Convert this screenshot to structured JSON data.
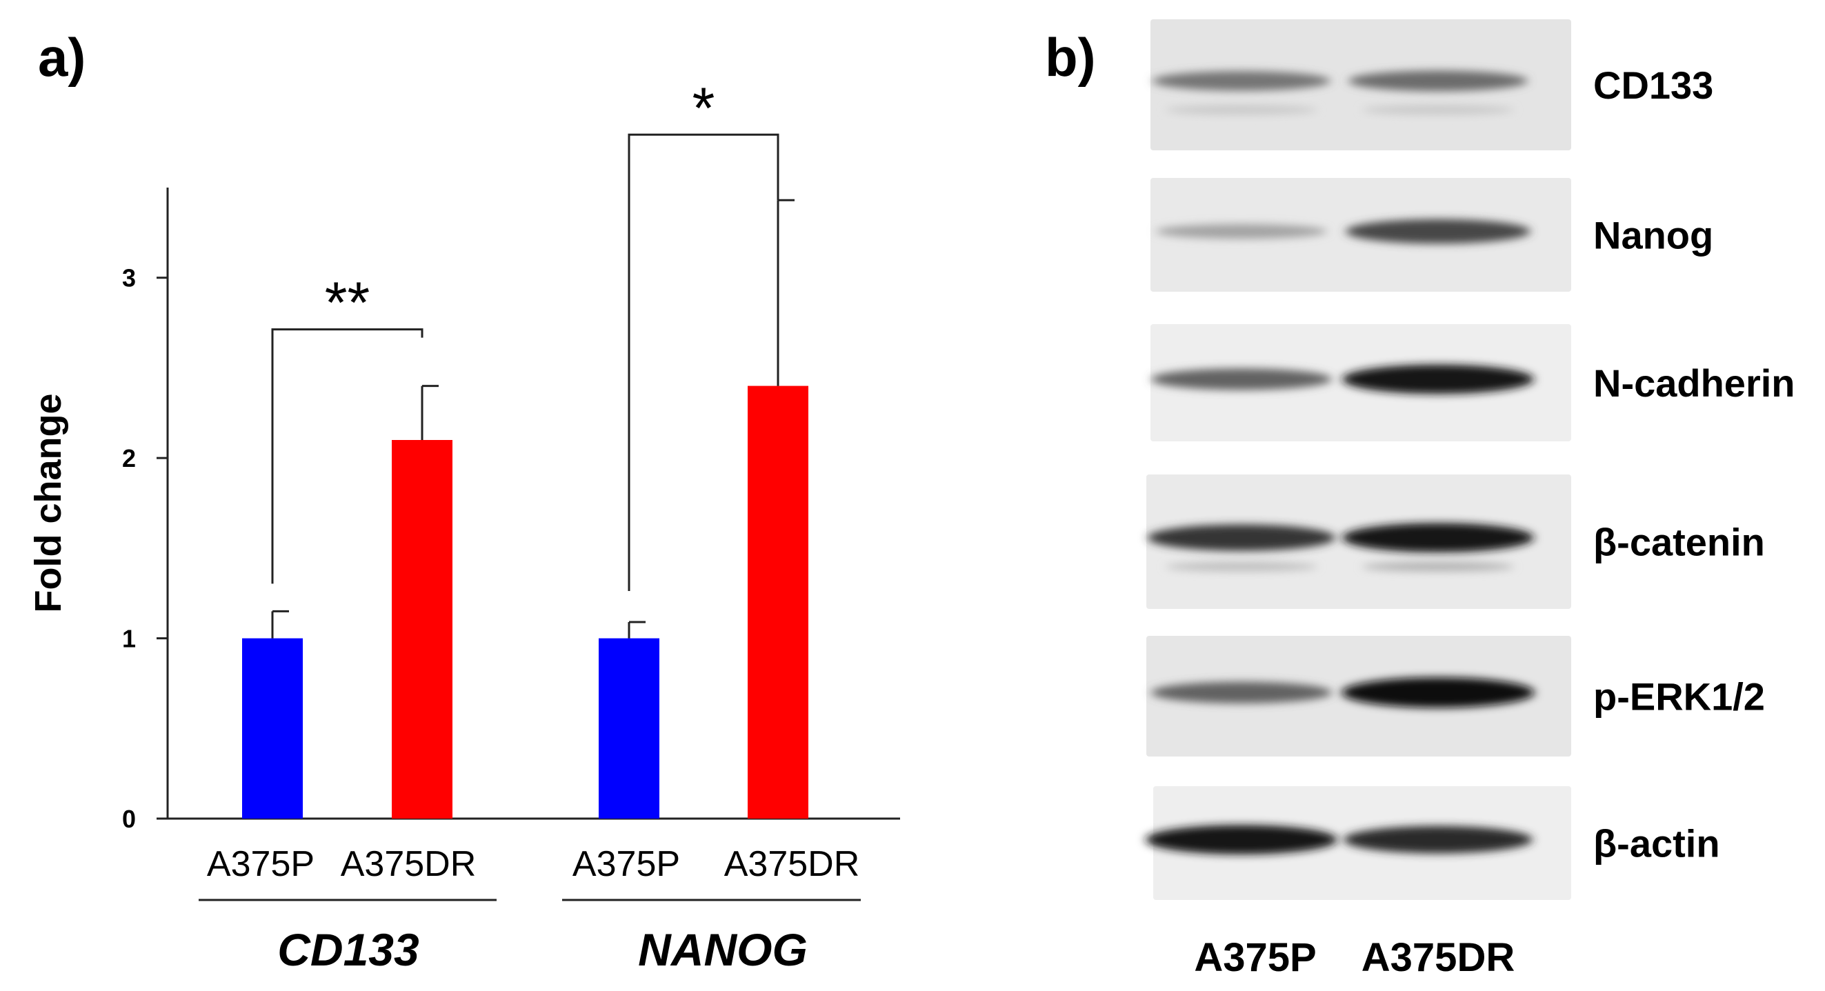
{
  "panel_a": {
    "letter": "a)"
  },
  "panel_b": {
    "letter": "b)",
    "lanes": [
      "A375P",
      "A375DR"
    ],
    "proteins": [
      {
        "name": "CD133",
        "bands": [
          0.45,
          0.5
        ],
        "secondary": [
          0.12,
          0.12
        ],
        "bg": "#e4e4e4"
      },
      {
        "name": "Nanog",
        "bands": [
          0.2,
          0.7
        ],
        "secondary": [
          0,
          0
        ],
        "bg": "#e9e9e9"
      },
      {
        "name": "N-cadherin",
        "bands": [
          0.55,
          0.95
        ],
        "secondary": [
          0,
          0
        ],
        "bg": "#eeeeee"
      },
      {
        "name": "β-catenin",
        "bands": [
          0.8,
          0.95
        ],
        "secondary": [
          0.2,
          0.3
        ],
        "bg": "#eaeaea"
      },
      {
        "name": "p-ERK1/2",
        "bands": [
          0.55,
          1.0
        ],
        "secondary": [
          0,
          0
        ],
        "bg": "#e6e6e6"
      },
      {
        "name": "β-actin",
        "bands": [
          0.95,
          0.85
        ],
        "secondary": [
          0,
          0
        ],
        "bg": "#eeeeee"
      }
    ]
  },
  "chart_data": {
    "type": "bar",
    "ylabel": "Fold change",
    "ylim": [
      0,
      3.5
    ],
    "yticks": [
      0,
      1,
      2,
      3
    ],
    "groups": [
      {
        "name": "CD133",
        "categories": [
          "A375P",
          "A375DR"
        ],
        "values": [
          1.0,
          2.1
        ],
        "errors": [
          0.15,
          0.3
        ],
        "significance": "**"
      },
      {
        "name": "NANOG",
        "categories": [
          "A375P",
          "A375DR"
        ],
        "values": [
          1.0,
          2.4
        ],
        "errors": [
          0.09,
          1.03
        ],
        "significance": "*"
      }
    ],
    "colors": {
      "A375P": "#0000ff",
      "A375DR": "#ff0000"
    }
  }
}
